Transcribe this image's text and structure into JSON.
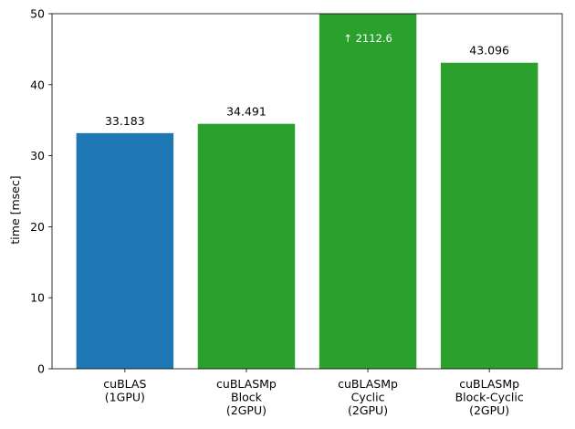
{
  "chart_data": {
    "type": "bar",
    "title": "",
    "xlabel": "",
    "ylabel": "time [msec]",
    "ylim": [
      0,
      50
    ],
    "yticks": [
      0,
      10,
      20,
      30,
      40,
      50
    ],
    "grid": false,
    "legend": "none",
    "categories": [
      [
        "cuBLAS",
        "(1GPU)"
      ],
      [
        "cuBLASMp",
        "Block",
        "(2GPU)"
      ],
      [
        "cuBLASMp",
        "Cyclic",
        "(2GPU)"
      ],
      [
        "cuBLASMp",
        "Block-Cyclic",
        "(2GPU)"
      ]
    ],
    "values": [
      33.183,
      34.491,
      2112.6,
      43.096
    ],
    "data_labels": [
      "33.183",
      "34.491",
      "↑ 2112.6",
      "43.096"
    ],
    "clipped": [
      false,
      false,
      true,
      false
    ],
    "colors": [
      "#1f77b4",
      "#2ca02c",
      "#2ca02c",
      "#2ca02c"
    ]
  }
}
